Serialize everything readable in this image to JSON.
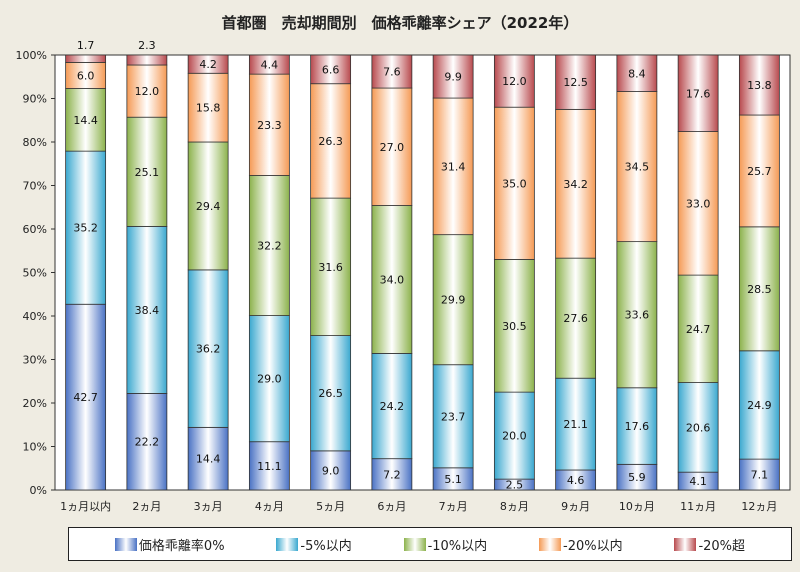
{
  "chart_data": {
    "type": "bar",
    "stacked": true,
    "title": "首都圏　売却期間別　価格乖離率シェア（2022年）",
    "categories": [
      "1ヵ月以内",
      "2ヵ月",
      "3ヵ月",
      "4ヵ月",
      "5ヵ月",
      "6ヵ月",
      "7ヵ月",
      "8ヵ月",
      "9ヵ月",
      "10ヵ月",
      "11ヵ月",
      "12ヵ月"
    ],
    "series": [
      {
        "name": "価格乖離率0%",
        "color": "#4a72c4",
        "values": [
          42.7,
          22.2,
          14.4,
          11.1,
          9.0,
          7.2,
          5.1,
          2.5,
          4.6,
          5.9,
          4.1,
          7.1
        ]
      },
      {
        "name": "-5%以内",
        "color": "#3aa8cf",
        "values": [
          35.2,
          38.4,
          36.2,
          29.0,
          26.5,
          24.2,
          23.7,
          20.0,
          21.1,
          17.6,
          20.6,
          24.9
        ]
      },
      {
        "name": "-10%以内",
        "color": "#8cb24c",
        "values": [
          14.4,
          25.1,
          29.4,
          32.2,
          31.6,
          34.0,
          29.9,
          30.5,
          27.6,
          33.6,
          24.7,
          28.5
        ]
      },
      {
        "name": "-20%以内",
        "color": "#f59a55",
        "values": [
          6.0,
          12.0,
          15.8,
          23.3,
          26.3,
          27.0,
          31.4,
          35.0,
          34.2,
          34.5,
          33.0,
          25.7
        ]
      },
      {
        "name": "-20%超",
        "color": "#b84a4e",
        "values": [
          1.7,
          2.3,
          4.2,
          4.4,
          6.6,
          7.6,
          9.9,
          12.0,
          12.5,
          8.4,
          17.6,
          13.8
        ]
      }
    ],
    "yticks": [
      "0%",
      "10%",
      "20%",
      "30%",
      "40%",
      "50%",
      "60%",
      "70%",
      "80%",
      "90%",
      "100%"
    ],
    "ylim": [
      0,
      100
    ],
    "xlabel": "",
    "ylabel": "",
    "legend": "bottom",
    "grid": false
  }
}
